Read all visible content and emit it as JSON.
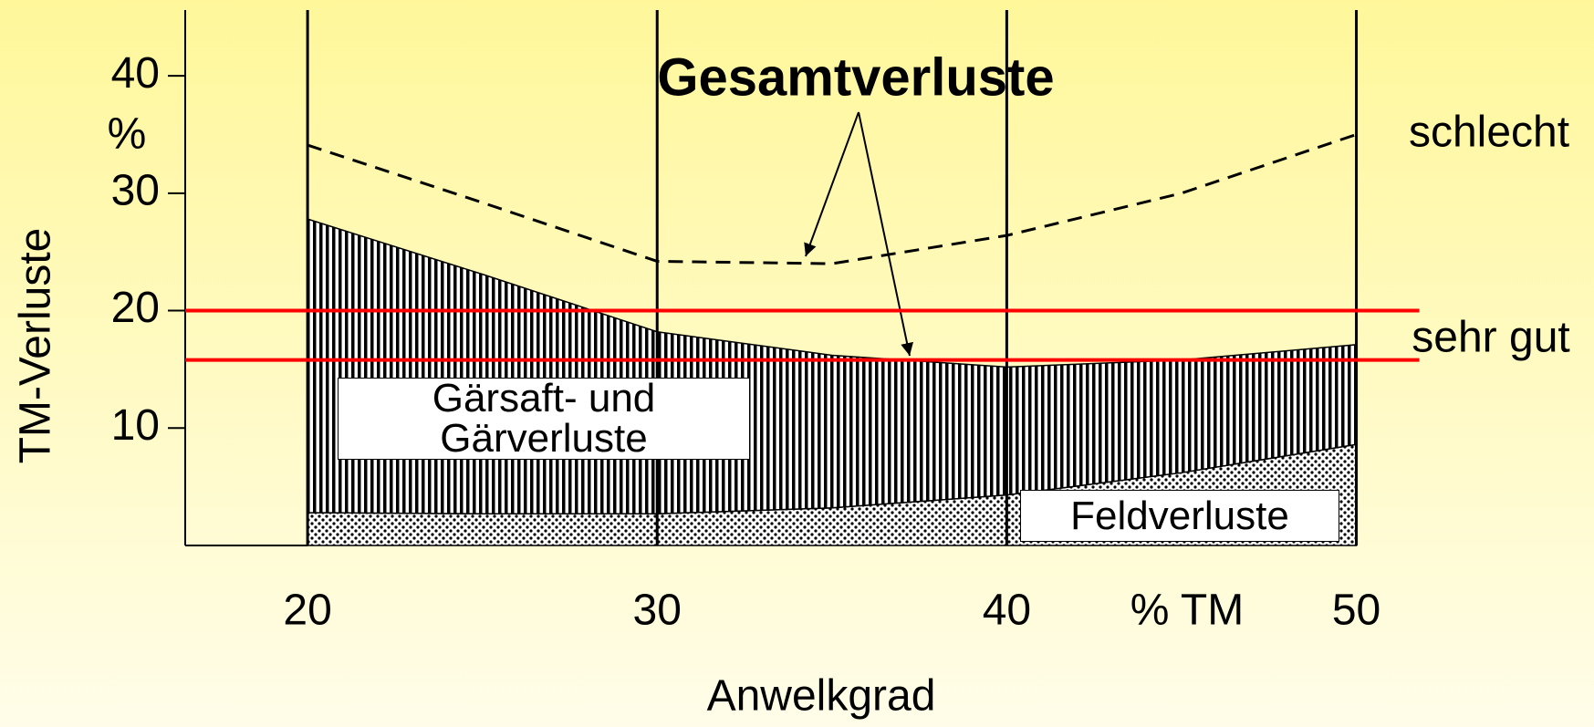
{
  "chart_data": {
    "type": "stacked-area",
    "title": "Gesamtverluste",
    "x_label": "Anwelkgrad",
    "x_unit": "% TM",
    "y_label": "TM-Verluste",
    "y_unit": "%",
    "x": [
      20,
      25,
      30,
      35,
      40,
      45,
      50
    ],
    "series": [
      {
        "name": "Feldverluste",
        "pattern": "dots",
        "values": [
          2.8,
          2.7,
          2.7,
          3.2,
          4.3,
          6.2,
          8.6
        ]
      },
      {
        "name": "Gärsaft- und Gärverluste",
        "pattern": "vertical-hatch",
        "values": [
          25.0,
          20.4,
          15.5,
          13.0,
          10.9,
          9.6,
          8.5
        ]
      }
    ],
    "lines": [
      {
        "name": "schlecht",
        "style": "dashed",
        "color": "#000000",
        "values": [
          34.1,
          29.2,
          24.2,
          24.0,
          26.4,
          30.0,
          35.0
        ]
      }
    ],
    "reference_band": {
      "label": "sehr gut",
      "color": "#ff0000",
      "values": [
        20,
        15.8
      ]
    },
    "xlim": [
      16.5,
      51.8
    ],
    "ylim": [
      0,
      45.6
    ],
    "xticks": [
      20,
      30,
      40,
      50
    ],
    "yticks": [
      10,
      20,
      30,
      40
    ],
    "grid": true
  }
}
